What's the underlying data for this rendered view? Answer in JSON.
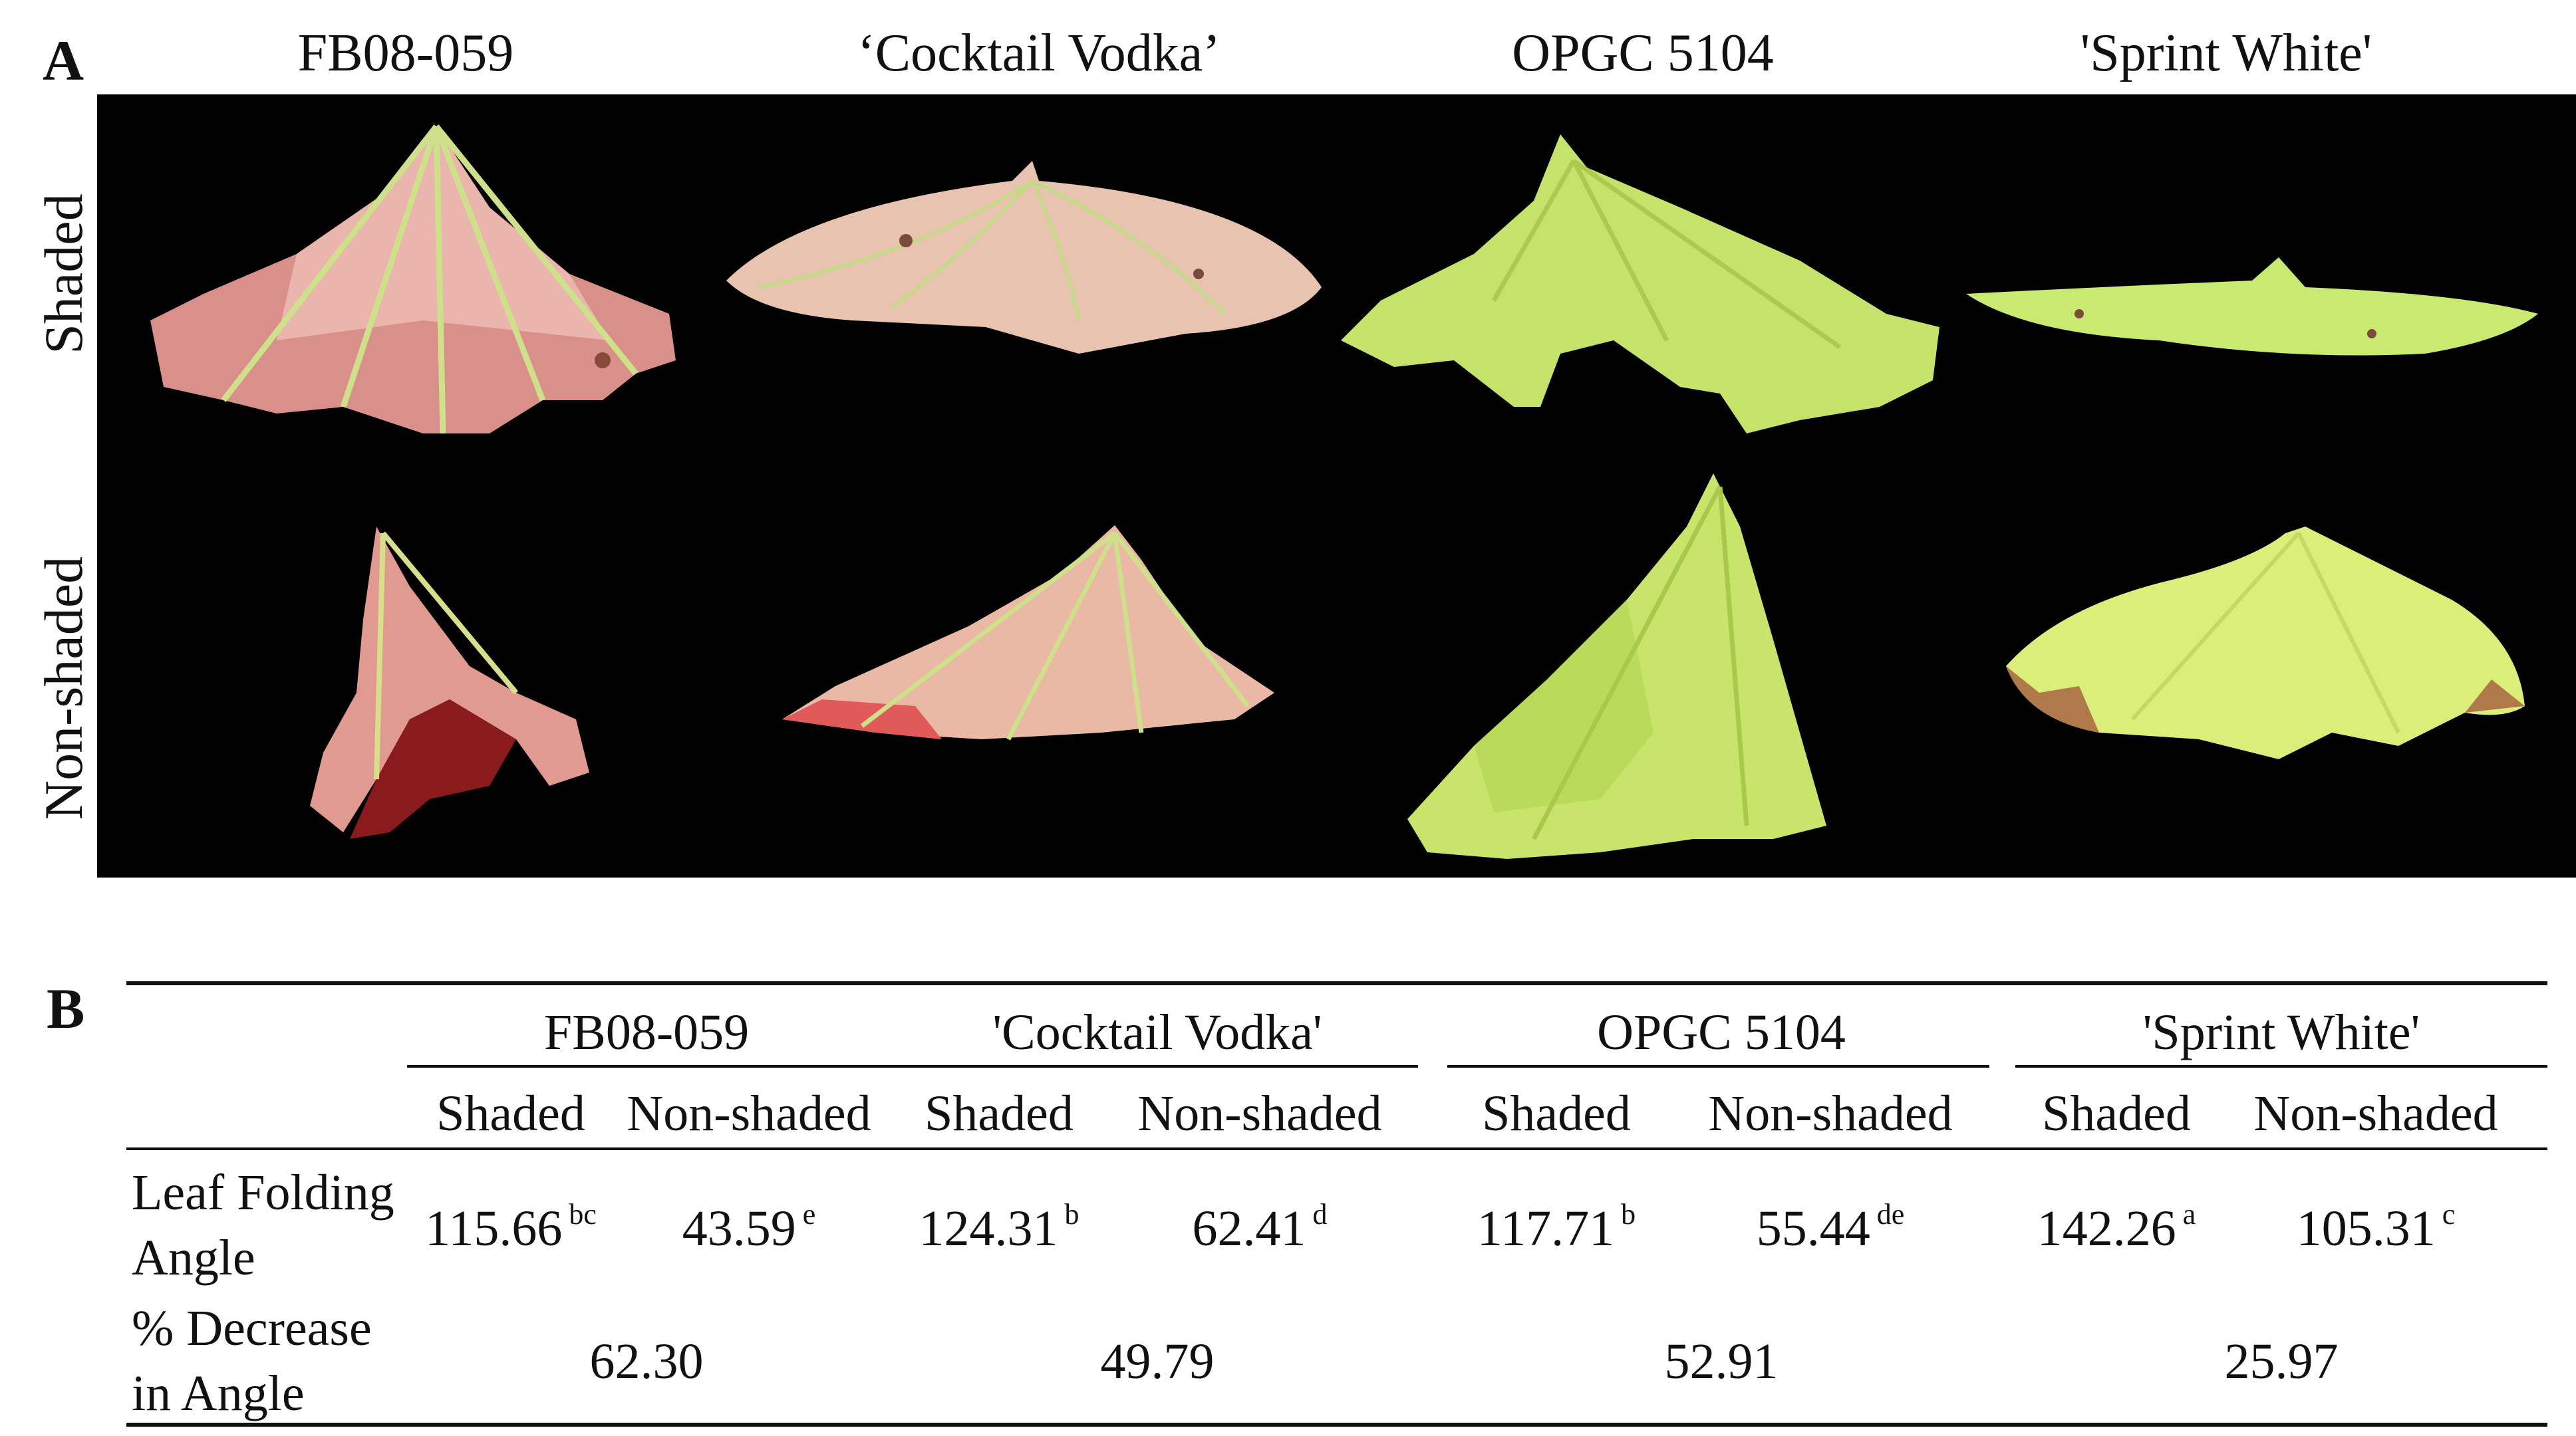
{
  "panel_a": {
    "letter": "A",
    "columns": [
      "FB08-059",
      "‘Cocktail Vodka’",
      "OPGC 5104",
      "'Sprint White'"
    ],
    "rows": [
      "Shaded",
      "Non-shaded"
    ]
  },
  "panel_b": {
    "letter": "B",
    "cultivars": [
      "FB08-059",
      "'Cocktail Vodka'",
      "OPGC 5104",
      "'Sprint White'"
    ],
    "sub_headers": [
      "Shaded",
      "Non-shaded",
      "Shaded",
      "Non-shaded",
      "Shaded",
      "Non-shaded",
      "Shaded",
      "Non-shaded"
    ],
    "leaf_angle": {
      "label_line1": "Leaf Folding",
      "label_line2": "Angle",
      "values": [
        "115.66",
        "43.59",
        "124.31",
        "62.41",
        "117.71",
        "55.44",
        "142.26",
        "105.31"
      ],
      "letters": [
        "bc",
        "e",
        "b",
        "d",
        "b",
        "de",
        "a",
        "c"
      ]
    },
    "decrease": {
      "label_line1": "% Decrease",
      "label_line2": "in Angle",
      "values": [
        "62.30",
        "49.79",
        "52.91",
        "25.97"
      ]
    }
  }
}
